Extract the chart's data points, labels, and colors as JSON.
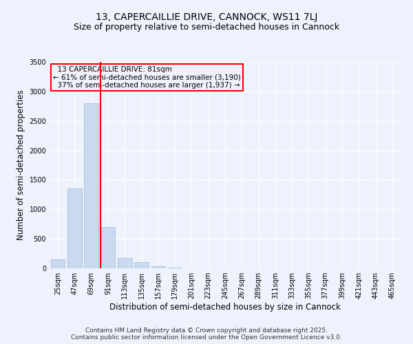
{
  "title_line1": "13, CAPERCAILLIE DRIVE, CANNOCK, WS11 7LJ",
  "title_line2": "Size of property relative to semi-detached houses in Cannock",
  "xlabel": "Distribution of semi-detached houses by size in Cannock",
  "ylabel": "Number of semi-detached properties",
  "bin_labels": [
    "25sqm",
    "47sqm",
    "69sqm",
    "91sqm",
    "113sqm",
    "135sqm",
    "157sqm",
    "179sqm",
    "201sqm",
    "223sqm",
    "245sqm",
    "267sqm",
    "289sqm",
    "311sqm",
    "333sqm",
    "355sqm",
    "377sqm",
    "399sqm",
    "421sqm",
    "443sqm",
    "465sqm"
  ],
  "bar_values": [
    150,
    1350,
    2800,
    700,
    175,
    100,
    35,
    10,
    2,
    0,
    0,
    0,
    0,
    0,
    0,
    0,
    0,
    0,
    0,
    0,
    0
  ],
  "bar_color": "#c9d9f0",
  "bar_edge_color": "#a0b8d8",
  "vline_x": 2.545,
  "vline_color": "red",
  "property_label": "13 CAPERCAILLIE DRIVE: 81sqm",
  "pct_smaller": "61% of semi-detached houses are smaller (3,190)",
  "pct_larger": "37% of semi-detached houses are larger (1,937)",
  "annotation_box_color": "red",
  "ylim": [
    0,
    3500
  ],
  "yticks": [
    0,
    500,
    1000,
    1500,
    2000,
    2500,
    3000,
    3500
  ],
  "footer_line1": "Contains HM Land Registry data © Crown copyright and database right 2025.",
  "footer_line2": "Contains public sector information licensed under the Open Government Licence v3.0.",
  "bg_color": "#eef2fc",
  "grid_color": "#ffffff",
  "title_fontsize": 10,
  "subtitle_fontsize": 9,
  "axis_label_fontsize": 8.5,
  "tick_fontsize": 7,
  "footer_fontsize": 6.5,
  "annotation_fontsize": 7.5
}
